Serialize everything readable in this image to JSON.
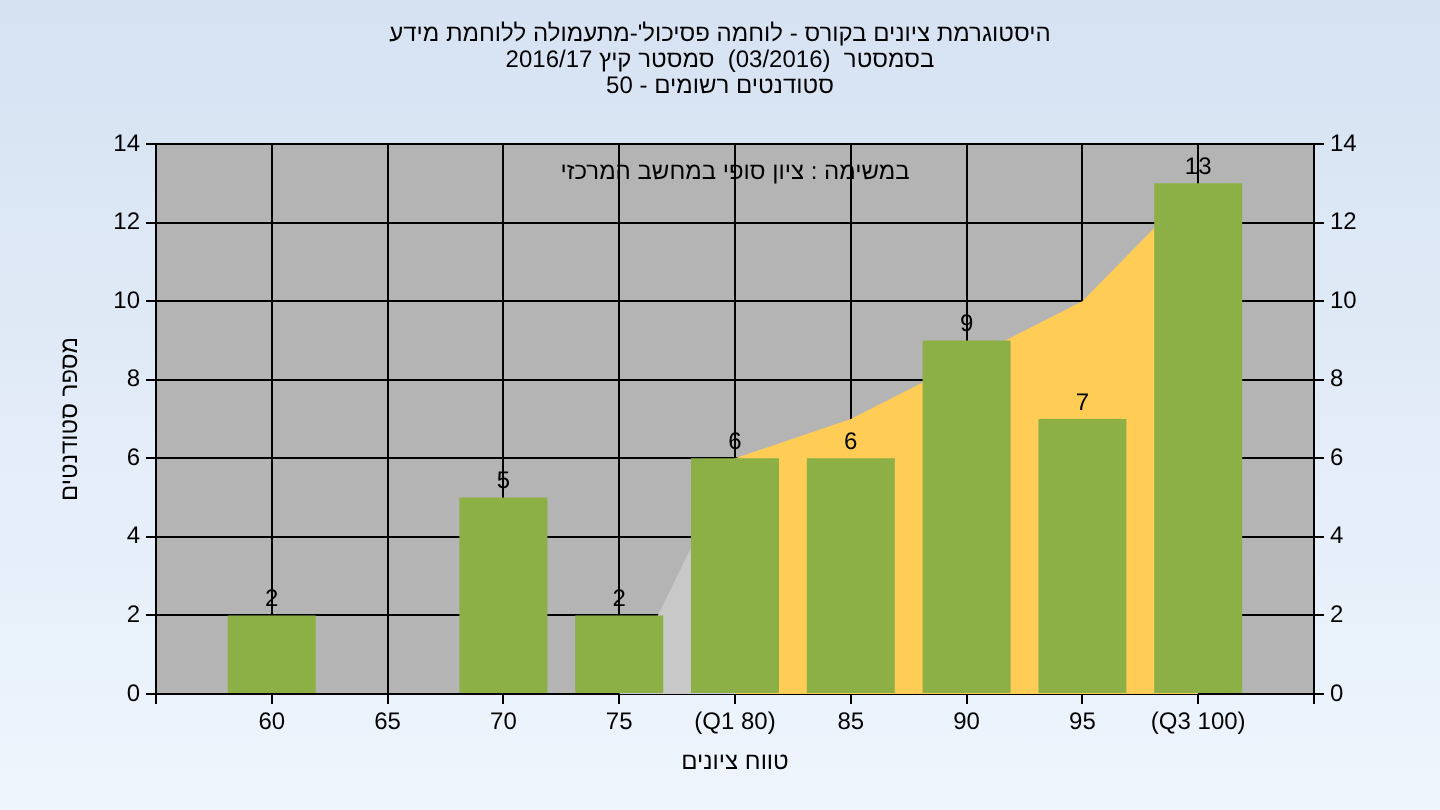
{
  "chart_data": {
    "type": "bar",
    "title": "היסטוגרמת ציונים בקורס - לוחמה פסיכול'-מתעמולה ללוחמת מידע",
    "subtitle": "בסמסטר  (03/2016)  סמסטר קיץ 2016/17\nסטודנטים רשומים - 50",
    "xlabel": "טווח ציונים",
    "ylabel": "מספר סטודנטים",
    "annotations": [
      "במשימה : ציון סופי במחשב המרכזי"
    ],
    "categories": [
      null,
      "60",
      "65",
      "70",
      "75",
      "(Q1 80)",
      "85",
      "90",
      "95",
      "(Q3 100)",
      null
    ],
    "series": [
      {
        "color": "#8db046",
        "values": [
          null,
          2,
          0,
          5,
          2,
          6,
          6,
          9,
          7,
          13,
          null
        ],
        "value_labels": [
          null,
          "2",
          null,
          "5",
          "2",
          "6",
          "6",
          "9",
          "7",
          "13",
          null
        ]
      },
      {
        "type": "area",
        "color": "#c8c8c8",
        "values": [
          null,
          null,
          null,
          null,
          0,
          6,
          null,
          null,
          null,
          null,
          null
        ]
      },
      {
        "type": "area",
        "color": "#ffcc55",
        "values": [
          null,
          null,
          null,
          null,
          null,
          6,
          7,
          null,
          10,
          13,
          null
        ]
      }
    ],
    "ylim": [
      0,
      14
    ],
    "yticks": [
      0,
      2,
      4,
      6,
      8,
      10,
      12,
      14
    ],
    "y2lim": [
      0,
      14
    ],
    "y2ticks": [
      0,
      2,
      4,
      6,
      8,
      10,
      12,
      14
    ],
    "grid": true,
    "legend": false
  }
}
